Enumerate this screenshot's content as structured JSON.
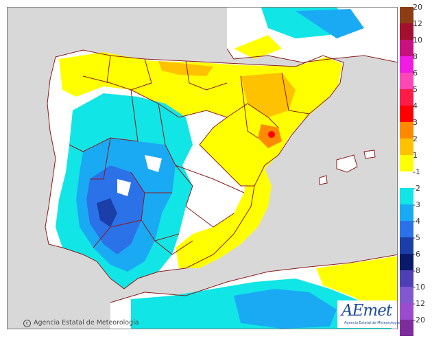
{
  "credit": "Agencia Estatal de Meteorología",
  "logo": {
    "brand": "AEmet",
    "subtitle": "Agencia Estatal de Meteorología"
  },
  "colors": {
    "sea": "#d8d8d8",
    "land_neutral": "#ffffff",
    "borders": "#8b1a1a"
  },
  "legend": [
    {
      "label": "20",
      "color": "#8c3d13"
    },
    {
      "label": "12",
      "color": "#a3102f"
    },
    {
      "label": "10",
      "color": "#c6117f"
    },
    {
      "label": "8",
      "color": "#f11ce4"
    },
    {
      "label": "6",
      "color": "#ff47b6"
    },
    {
      "label": "5",
      "color": "#ff1b49"
    },
    {
      "label": "4",
      "color": "#ff0000"
    },
    {
      "label": "3",
      "color": "#ff8a00"
    },
    {
      "label": "2",
      "color": "#ffc200"
    },
    {
      "label": "1",
      "color": "#ffff00"
    },
    {
      "label": "-1",
      "color": "#ffffff"
    },
    {
      "label": "-2",
      "color": "#12e5e5"
    },
    {
      "label": "-3",
      "color": "#1aaaf4"
    },
    {
      "label": "-4",
      "color": "#2b72e8"
    },
    {
      "label": "-5",
      "color": "#1b3ea8"
    },
    {
      "label": "-6",
      "color": "#0a1a6b"
    },
    {
      "label": "-8",
      "color": "#4e3fb5"
    },
    {
      "label": "-10",
      "color": "#8058cf"
    },
    {
      "label": "-12",
      "color": "#9a4ccc"
    },
    {
      "label": "-20",
      "color": "#7d2c9c"
    }
  ]
}
